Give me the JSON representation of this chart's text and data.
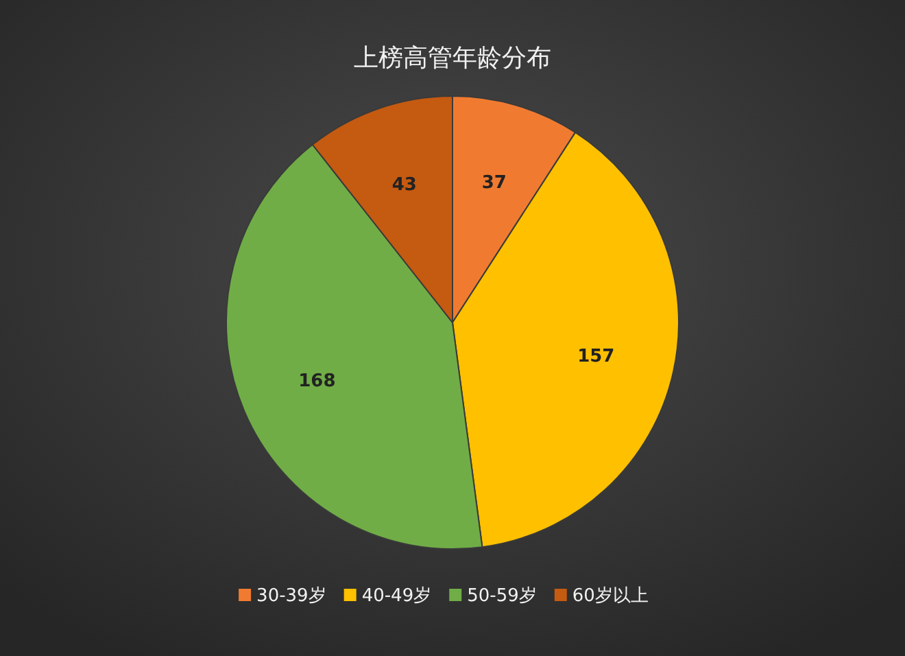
{
  "chart_data": {
    "type": "pie",
    "title": "上榜高管年龄分布",
    "categories": [
      "30-39岁",
      "40-49岁",
      "50-59岁",
      "60岁以上"
    ],
    "values": [
      37,
      157,
      168,
      43
    ],
    "colors": [
      "#f07b30",
      "#ffc000",
      "#70ad47",
      "#c55a11"
    ],
    "data_labels": true,
    "legend": "bottom"
  }
}
